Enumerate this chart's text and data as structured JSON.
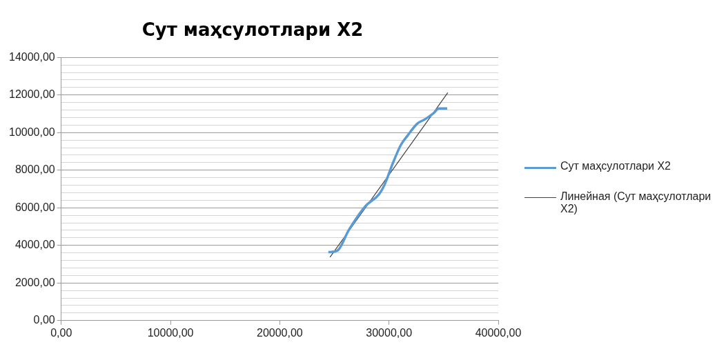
{
  "chart_data": {
    "type": "line",
    "title": "Сут маҳсулотлари X2",
    "series": [
      {
        "name": "Сут маҳсулотлари X2",
        "color": "#5b9bd5",
        "x": [
          24450,
          25275,
          26325,
          27825,
          29078,
          29580,
          30330,
          31080,
          31700,
          32580,
          33330,
          34080,
          34580,
          35330
        ],
        "values": [
          3640,
          3720,
          4820,
          6080,
          6710,
          7210,
          8340,
          9340,
          9840,
          10470,
          10720,
          11030,
          11280,
          11280
        ]
      },
      {
        "name": "Линейная (Сут маҳсулотлари X2)",
        "type": "line",
        "color": "#404040",
        "x": [
          24600,
          35380
        ],
        "values": [
          3370,
          12120
        ]
      }
    ],
    "xlim": [
      0,
      40000
    ],
    "ylim": [
      0,
      14000
    ],
    "xticks": [
      {
        "value": 0,
        "label": "0,00"
      },
      {
        "value": 10000,
        "label": "10000,00"
      },
      {
        "value": 20000,
        "label": "20000,00"
      },
      {
        "value": 30000,
        "label": "30000,00"
      },
      {
        "value": 40000,
        "label": "40000,00"
      }
    ],
    "yticks": [
      {
        "value": 0,
        "label": "0,00"
      },
      {
        "value": 400,
        "label": null
      },
      {
        "value": 800,
        "label": null
      },
      {
        "value": 1200,
        "label": null
      },
      {
        "value": 1600,
        "label": null
      },
      {
        "value": 2000,
        "label": "2000,00"
      },
      {
        "value": 2400,
        "label": null
      },
      {
        "value": 2800,
        "label": null
      },
      {
        "value": 3200,
        "label": null
      },
      {
        "value": 3600,
        "label": null
      },
      {
        "value": 4000,
        "label": "4000,00"
      },
      {
        "value": 4400,
        "label": null
      },
      {
        "value": 4800,
        "label": null
      },
      {
        "value": 5200,
        "label": null
      },
      {
        "value": 5600,
        "label": null
      },
      {
        "value": 6000,
        "label": "6000,00"
      },
      {
        "value": 6400,
        "label": null
      },
      {
        "value": 6800,
        "label": null
      },
      {
        "value": 7200,
        "label": null
      },
      {
        "value": 7600,
        "label": null
      },
      {
        "value": 8000,
        "label": "8000,00"
      },
      {
        "value": 8400,
        "label": null
      },
      {
        "value": 8800,
        "label": null
      },
      {
        "value": 9200,
        "label": null
      },
      {
        "value": 9600,
        "label": null
      },
      {
        "value": 10000,
        "label": "10000,00"
      },
      {
        "value": 10400,
        "label": null
      },
      {
        "value": 10800,
        "label": null
      },
      {
        "value": 11200,
        "label": null
      },
      {
        "value": 11600,
        "label": null
      },
      {
        "value": 12000,
        "label": "12000,00"
      },
      {
        "value": 12400,
        "label": null
      },
      {
        "value": 12800,
        "label": null
      },
      {
        "value": 13200,
        "label": null
      },
      {
        "value": 13600,
        "label": null
      },
      {
        "value": 14000,
        "label": "14000,00"
      }
    ],
    "grid": "y",
    "legend": "right",
    "marker": "none",
    "line_style": "solid"
  }
}
